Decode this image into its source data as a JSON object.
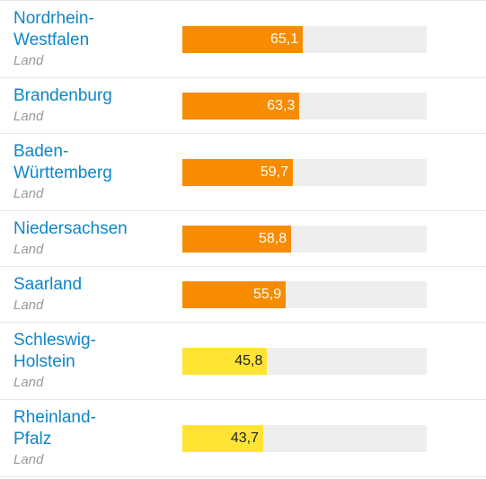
{
  "chart_data": {
    "type": "bar",
    "categories": [
      "Nordrhein-Westfalen",
      "Brandenburg",
      "Baden-Württemberg",
      "Niedersachsen",
      "Saarland",
      "Schleswig-Holstein",
      "Rheinland-Pfalz"
    ],
    "subtitles": [
      "Land",
      "Land",
      "Land",
      "Land",
      "Land",
      "Land",
      "Land"
    ],
    "values": [
      65.1,
      63.3,
      59.7,
      58.8,
      55.9,
      45.8,
      43.7
    ],
    "value_labels": [
      "65,1",
      "63,3",
      "59,7",
      "58,8",
      "55,9",
      "45,8",
      "43,7"
    ],
    "colors": [
      "#f78c00",
      "#f78c00",
      "#f78c00",
      "#f78c00",
      "#f78c00",
      "#ffe433",
      "#ffe433"
    ],
    "label_colors": [
      "#ffffff",
      "#ffffff",
      "#ffffff",
      "#ffffff",
      "#ffffff",
      "#222222",
      "#222222"
    ],
    "track_color": "#eeeeee"
  }
}
